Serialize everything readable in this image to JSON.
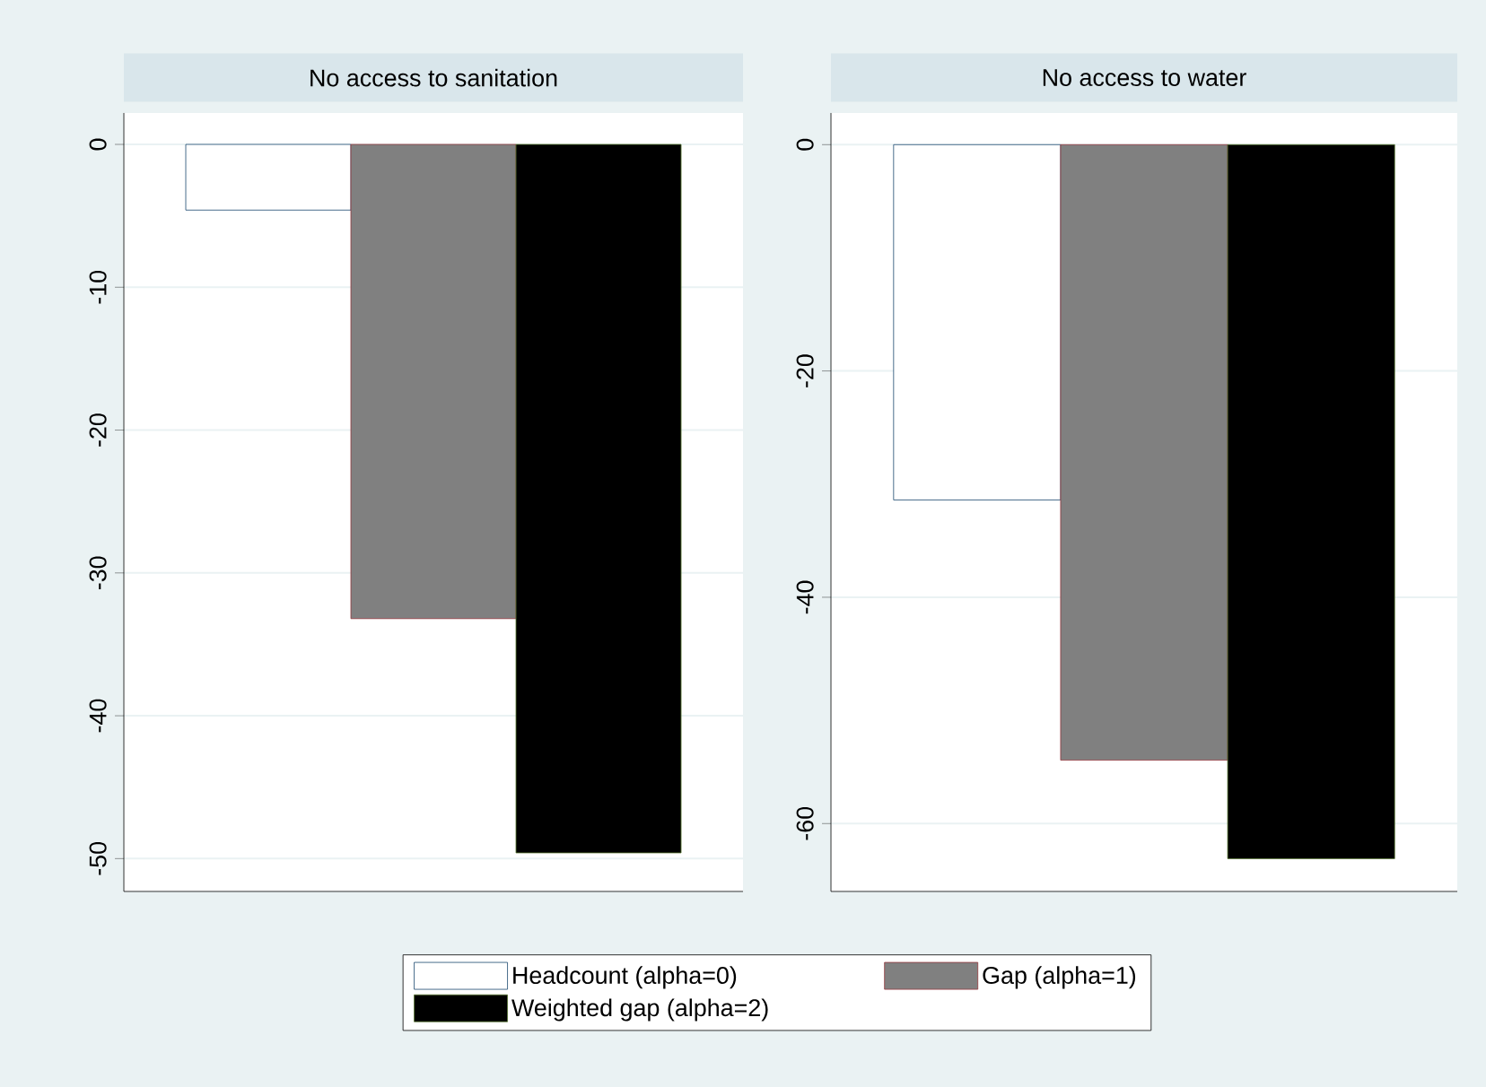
{
  "chart_data": [
    {
      "type": "bar",
      "title": "No access to sanitation",
      "categories": [
        null
      ],
      "ylim": [
        -52.3,
        2.2
      ],
      "yticks": [
        0,
        -10,
        -20,
        -30,
        -40,
        -50
      ],
      "grid": "y",
      "legend": "bottom",
      "series": [
        {
          "name": "Headcount (alpha=0)",
          "color": "#ffffff",
          "values": [
            -4.6
          ]
        },
        {
          "name": "Gap (alpha=1)",
          "color": "#808080",
          "values": [
            -33.2
          ]
        },
        {
          "name": "Weighted gap (alpha=2)",
          "color": "#000000",
          "values": [
            -49.6
          ]
        }
      ]
    },
    {
      "type": "bar",
      "title": "No access to water",
      "categories": [
        null
      ],
      "ylim": [
        -66.0,
        2.8
      ],
      "yticks": [
        0,
        -20,
        -40,
        -60
      ],
      "grid": "y",
      "series": [
        {
          "color": "#ffffff",
          "values": [
            -31.4
          ]
        },
        {
          "color": "#808080",
          "values": [
            -54.4
          ]
        },
        {
          "color": "#000000",
          "values": [
            -63.1
          ]
        }
      ]
    }
  ]
}
